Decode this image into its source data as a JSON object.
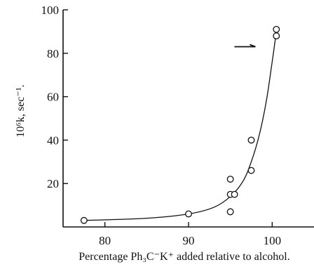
{
  "chart_data": {
    "type": "scatter",
    "title": "",
    "xlabel": "Percentage Ph₃C⁻K⁺ added relative to alcohol.",
    "ylabel": "10⁶k, sec⁻¹.",
    "xlim": [
      75,
      105
    ],
    "ylim": [
      0,
      100
    ],
    "x_ticks": [
      80,
      90,
      100
    ],
    "y_ticks": [
      20,
      40,
      60,
      80,
      100
    ],
    "grid": false,
    "series": [
      {
        "points": [
          {
            "x": 77.5,
            "y": 3
          },
          {
            "x": 90,
            "y": 6
          },
          {
            "x": 95,
            "y": 7
          },
          {
            "x": 95,
            "y": 15
          },
          {
            "x": 95,
            "y": 22
          },
          {
            "x": 95.5,
            "y": 15
          },
          {
            "x": 97.5,
            "y": 26
          },
          {
            "x": 97.5,
            "y": 40
          },
          {
            "x": 100.5,
            "y": 88
          },
          {
            "x": 100.5,
            "y": 91
          }
        ]
      }
    ],
    "fitted_curve": [
      {
        "x": 77.5,
        "y": 3
      },
      {
        "x": 85,
        "y": 4
      },
      {
        "x": 90,
        "y": 6
      },
      {
        "x": 93,
        "y": 9
      },
      {
        "x": 95,
        "y": 14
      },
      {
        "x": 96.5,
        "y": 21
      },
      {
        "x": 97.5,
        "y": 30
      },
      {
        "x": 98.5,
        "y": 43
      },
      {
        "x": 99.3,
        "y": 58
      },
      {
        "x": 100,
        "y": 76
      },
      {
        "x": 100.5,
        "y": 90
      }
    ],
    "annotations": [
      {
        "type": "arrow",
        "direction": "right",
        "at": {
          "x": 98,
          "y": 83
        }
      }
    ]
  }
}
